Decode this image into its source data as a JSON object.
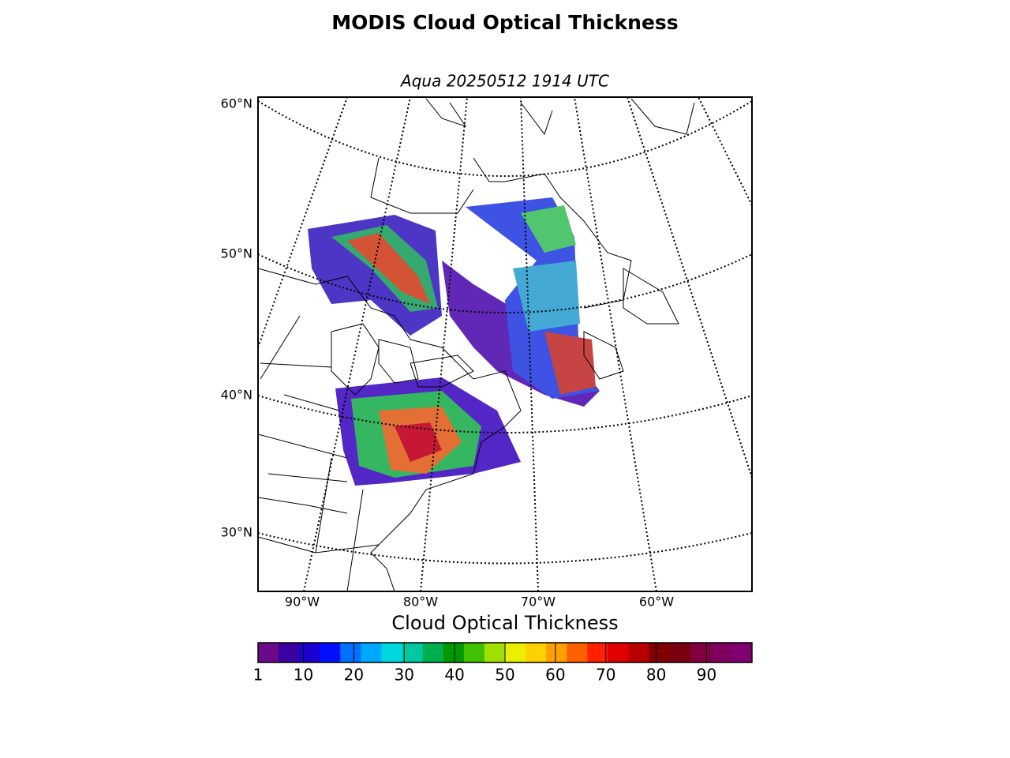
{
  "header": {
    "title": "MODIS Cloud Optical Thickness",
    "subtitle": "Aqua 20250512 1914 UTC"
  },
  "map": {
    "lat_labels": [
      "60°N",
      "50°N",
      "40°N",
      "30°N"
    ],
    "lon_labels": [
      "90°W",
      "80°W",
      "70°W",
      "60°W"
    ]
  },
  "colorbar": {
    "label": "Cloud Optical Thickness",
    "range": [
      1,
      99
    ],
    "ticks": [
      1,
      10,
      20,
      30,
      40,
      50,
      60,
      70,
      80,
      90
    ],
    "colors": [
      "#6a0a8a",
      "#3a00a0",
      "#1a00d0",
      "#0010ff",
      "#0070ff",
      "#00a8ff",
      "#00d8e0",
      "#00c8a0",
      "#00b050",
      "#009a00",
      "#40c000",
      "#a0e000",
      "#e8f000",
      "#ffd000",
      "#ffa000",
      "#ff6000",
      "#ff2000",
      "#e00000",
      "#b80000",
      "#800000",
      "#780010",
      "#800040",
      "#800060",
      "#800070"
    ]
  }
}
